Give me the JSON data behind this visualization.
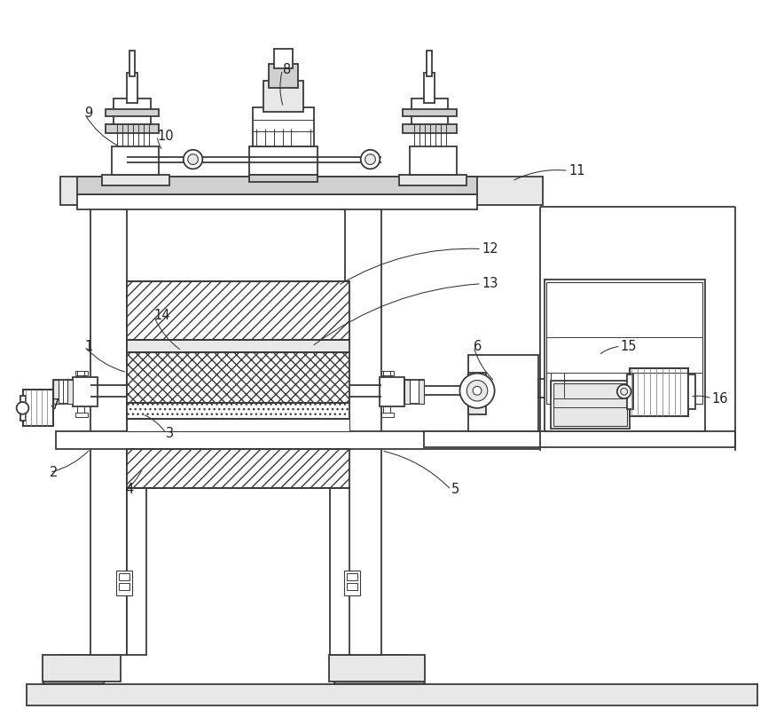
{
  "bg_color": "#ffffff",
  "lc": "#3a3a3a",
  "lc2": "#555555",
  "gray1": "#e8e8e8",
  "gray2": "#d0d0d0",
  "gray3": "#c0c0c0",
  "figsize": [
    8.84,
    8.08
  ],
  "dpi": 100
}
